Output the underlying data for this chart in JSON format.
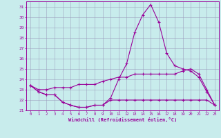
{
  "xlabel": "Windchill (Refroidissement éolien,°C)",
  "background_color": "#c8ecec",
  "line_color": "#990099",
  "grid_color": "#9999bb",
  "hours": [
    0,
    1,
    2,
    3,
    4,
    5,
    6,
    7,
    8,
    9,
    10,
    11,
    12,
    13,
    14,
    15,
    16,
    17,
    18,
    19,
    20,
    21,
    22,
    23
  ],
  "line1": [
    23.4,
    22.8,
    22.5,
    22.5,
    21.8,
    21.5,
    21.3,
    21.3,
    21.5,
    21.5,
    22.2,
    24.0,
    25.5,
    28.5,
    30.2,
    31.2,
    29.5,
    26.5,
    25.3,
    25.0,
    24.8,
    24.2,
    22.8,
    21.5
  ],
  "line2": [
    23.4,
    22.8,
    22.5,
    22.5,
    21.8,
    21.5,
    21.3,
    21.3,
    21.5,
    21.5,
    22.0,
    22.0,
    22.0,
    22.0,
    22.0,
    22.0,
    22.0,
    22.0,
    22.0,
    22.0,
    22.0,
    22.0,
    22.0,
    21.5
  ],
  "line3": [
    23.4,
    23.0,
    23.0,
    23.2,
    23.2,
    23.2,
    23.5,
    23.5,
    23.5,
    23.8,
    24.0,
    24.2,
    24.2,
    24.5,
    24.5,
    24.5,
    24.5,
    24.5,
    24.5,
    24.8,
    25.0,
    24.5,
    23.0,
    21.5
  ],
  "ylim": [
    21,
    31.5
  ],
  "yticks": [
    21,
    22,
    23,
    24,
    25,
    26,
    27,
    28,
    29,
    30,
    31
  ],
  "xlim": [
    -0.5,
    23.5
  ]
}
